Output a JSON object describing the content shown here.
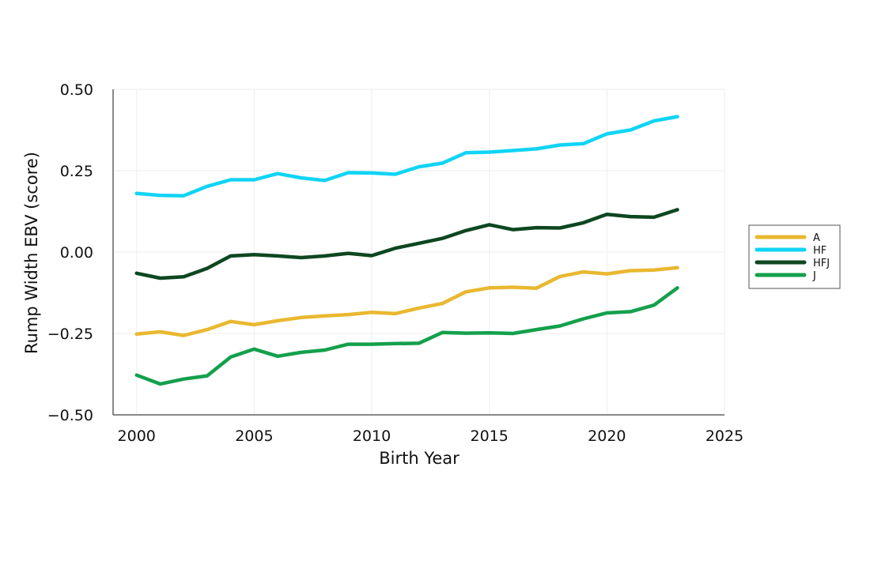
{
  "chart_data": {
    "type": "line",
    "title": "",
    "xlabel": "Birth Year",
    "ylabel": "Rump Width EBV (score)",
    "xlim": [
      1999,
      2025
    ],
    "ylim": [
      -0.5,
      0.5
    ],
    "xticks": [
      2000,
      2005,
      2010,
      2015,
      2020,
      2025
    ],
    "xtick_labels": [
      "2000",
      "2005",
      "2010",
      "2015",
      "2020",
      "2025"
    ],
    "yticks": [
      -0.5,
      -0.25,
      0,
      0.25,
      0.5
    ],
    "ytick_labels": [
      "−0.50",
      "−0.25",
      "0.00",
      "0.25",
      "0.50"
    ],
    "grid": true,
    "legend_position": "right",
    "x": [
      2000,
      2001,
      2002,
      2003,
      2004,
      2005,
      2006,
      2007,
      2008,
      2009,
      2010,
      2011,
      2012,
      2013,
      2014,
      2015,
      2016,
      2017,
      2018,
      2019,
      2020,
      2021,
      2022,
      2023
    ],
    "series": [
      {
        "name": "A",
        "color": "#E9B830",
        "values": [
          -0.252,
          -0.245,
          -0.256,
          -0.238,
          -0.213,
          -0.223,
          -0.211,
          -0.201,
          -0.196,
          -0.192,
          -0.185,
          -0.189,
          -0.172,
          -0.158,
          -0.122,
          -0.11,
          -0.108,
          -0.111,
          -0.075,
          -0.061,
          -0.067,
          -0.057,
          -0.055,
          -0.048
        ]
      },
      {
        "name": "HF",
        "color": "#10D4F5",
        "values": [
          0.18,
          0.174,
          0.173,
          0.202,
          0.222,
          0.222,
          0.241,
          0.228,
          0.22,
          0.244,
          0.243,
          0.239,
          0.262,
          0.273,
          0.305,
          0.307,
          0.312,
          0.317,
          0.329,
          0.333,
          0.363,
          0.375,
          0.403,
          0.416
        ]
      },
      {
        "name": "HFJ",
        "color": "#0D4720",
        "values": [
          -0.065,
          -0.08,
          -0.076,
          -0.05,
          -0.012,
          -0.008,
          -0.012,
          -0.017,
          -0.012,
          -0.004,
          -0.011,
          0.012,
          0.027,
          0.042,
          0.066,
          0.084,
          0.069,
          0.075,
          0.074,
          0.09,
          0.116,
          0.109,
          0.107,
          0.13
        ]
      },
      {
        "name": "J",
        "color": "#14A04C",
        "values": [
          -0.378,
          -0.405,
          -0.39,
          -0.38,
          -0.322,
          -0.298,
          -0.32,
          -0.308,
          -0.301,
          -0.283,
          -0.283,
          -0.281,
          -0.28,
          -0.247,
          -0.249,
          -0.248,
          -0.25,
          -0.238,
          -0.227,
          -0.205,
          -0.187,
          -0.183,
          -0.163,
          -0.11
        ]
      }
    ]
  }
}
